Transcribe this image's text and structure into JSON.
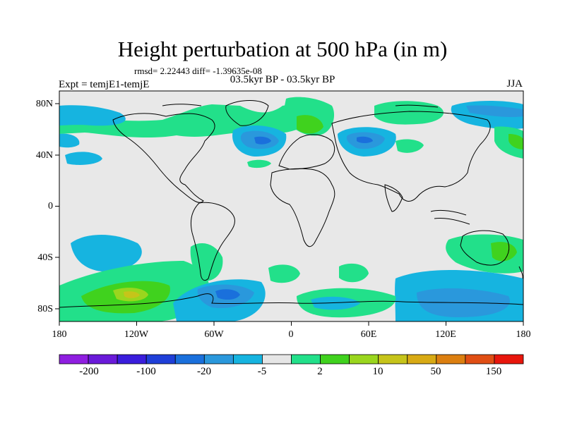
{
  "title": "Height perturbation at 500 hPa (in m)",
  "stats_line": "rmsd= 2.22443 diff= -1.39635e-08",
  "experiment_label": "Expt = temjE1-temjE",
  "period_label": "03.5kyr BP - 03.5kyr BP",
  "season_label": "JJA",
  "map": {
    "lat_range": [
      -90,
      90
    ],
    "lon_range": [
      -180,
      180
    ],
    "lat_ticks": [
      {
        "value": 80,
        "label": "80N"
      },
      {
        "value": 40,
        "label": "40N"
      },
      {
        "value": 0,
        "label": "0"
      },
      {
        "value": -40,
        "label": "40S"
      },
      {
        "value": -80,
        "label": "80S"
      }
    ],
    "lon_ticks": [
      {
        "value": -180,
        "label": "180"
      },
      {
        "value": -120,
        "label": "120W"
      },
      {
        "value": -60,
        "label": "60W"
      },
      {
        "value": 0,
        "label": "0"
      },
      {
        "value": 60,
        "label": "60E"
      },
      {
        "value": 120,
        "label": "120E"
      },
      {
        "value": 180,
        "label": "180"
      }
    ],
    "background_color": "#e8e8e8",
    "coastline_color": "#000000"
  },
  "colorbar": {
    "colors": [
      "#8f1ee0",
      "#6a1ad9",
      "#3a1ddc",
      "#1f3fd8",
      "#1a70dc",
      "#2a98dc",
      "#16b4e0",
      "#e6e6e6",
      "#22e08a",
      "#40d21e",
      "#9ad61e",
      "#c6c41a",
      "#d8aa14",
      "#dc7f10",
      "#e04e14",
      "#e8160c"
    ],
    "labels": [
      "-200",
      "-100",
      "-20",
      "-5",
      "2",
      "10",
      "50",
      "150"
    ]
  },
  "icons": [
    "coastline-outline"
  ]
}
